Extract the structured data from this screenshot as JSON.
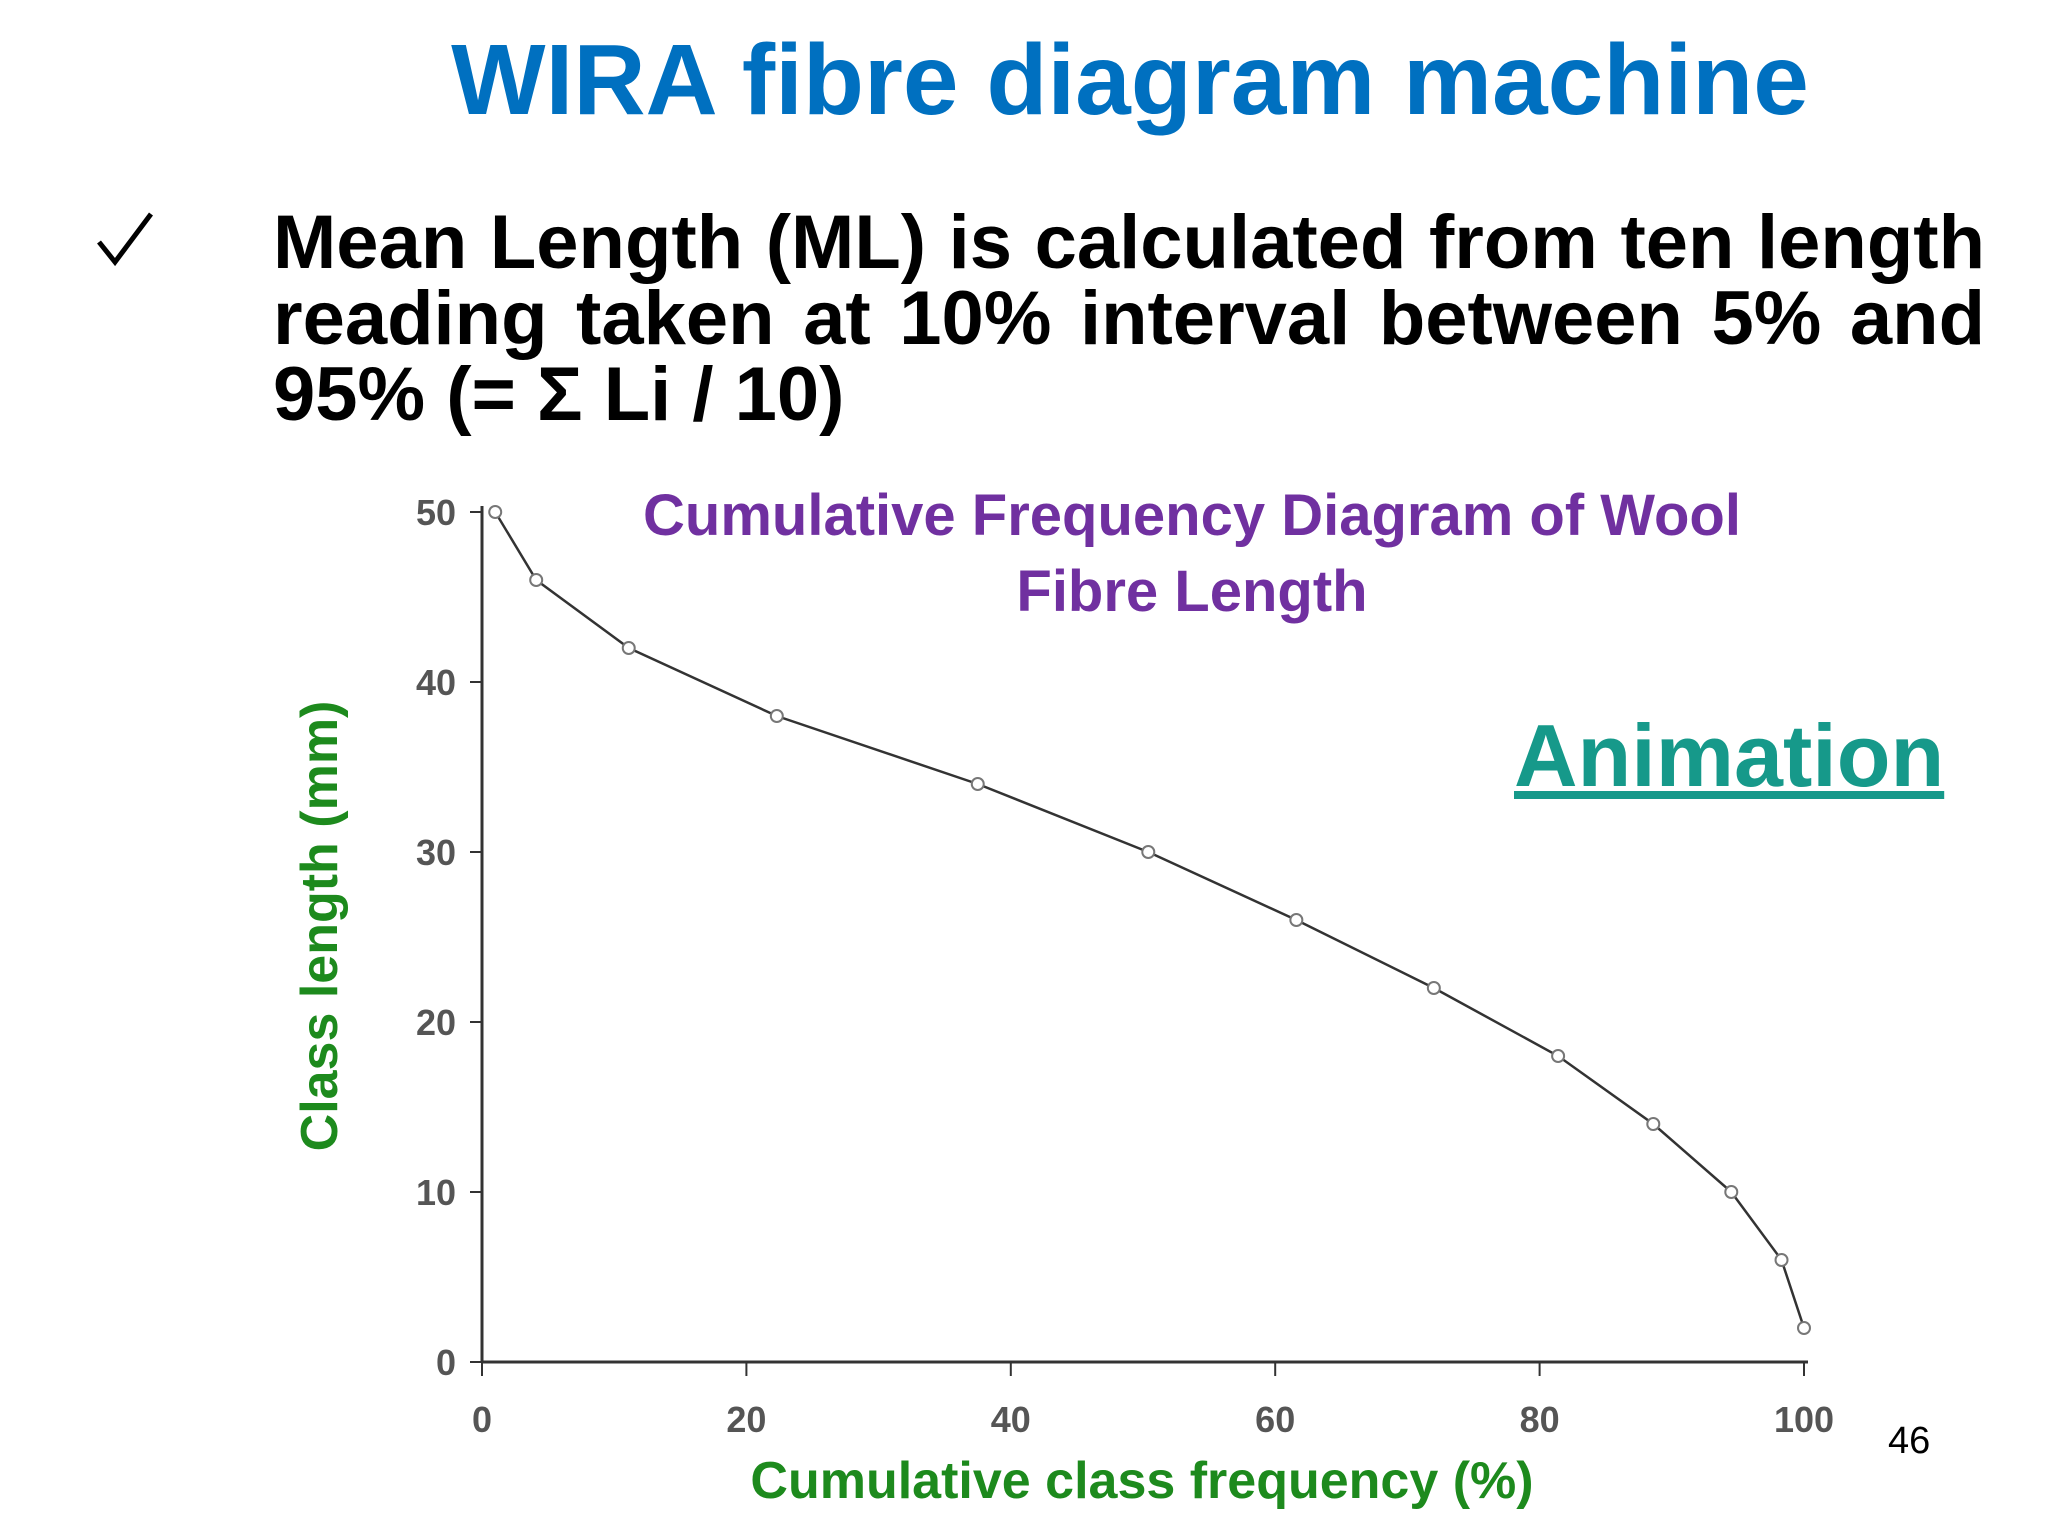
{
  "slide_title": "WIRA fibre diagram machine",
  "bullet": "Mean Length (ML) is  calculated from ten length reading taken at 10% interval between 5% and 95% (= Σ Li / 10)",
  "link": "Animation",
  "page_number": "46",
  "chart_data": {
    "type": "line",
    "title": "Cumulative Frequency Diagram of Wool Fibre Length",
    "x_label": "Cumulative class frequency (%)",
    "y_label": "Class length (mm)",
    "x": [
      1.0,
      4.1,
      11.1,
      22.3,
      37.5,
      50.4,
      61.6,
      72.0,
      81.4,
      88.6,
      94.5,
      98.3,
      100
    ],
    "y": [
      50,
      46,
      42,
      38,
      34,
      30,
      26,
      22,
      18,
      14,
      10,
      6,
      2
    ],
    "color": "#333333",
    "xlim": [
      0,
      100
    ],
    "ylim": [
      0,
      50
    ],
    "xticks": [
      0,
      20,
      40,
      60,
      80,
      100
    ],
    "yticks": [
      0,
      10,
      20,
      30,
      40,
      50
    ],
    "grid": false
  }
}
